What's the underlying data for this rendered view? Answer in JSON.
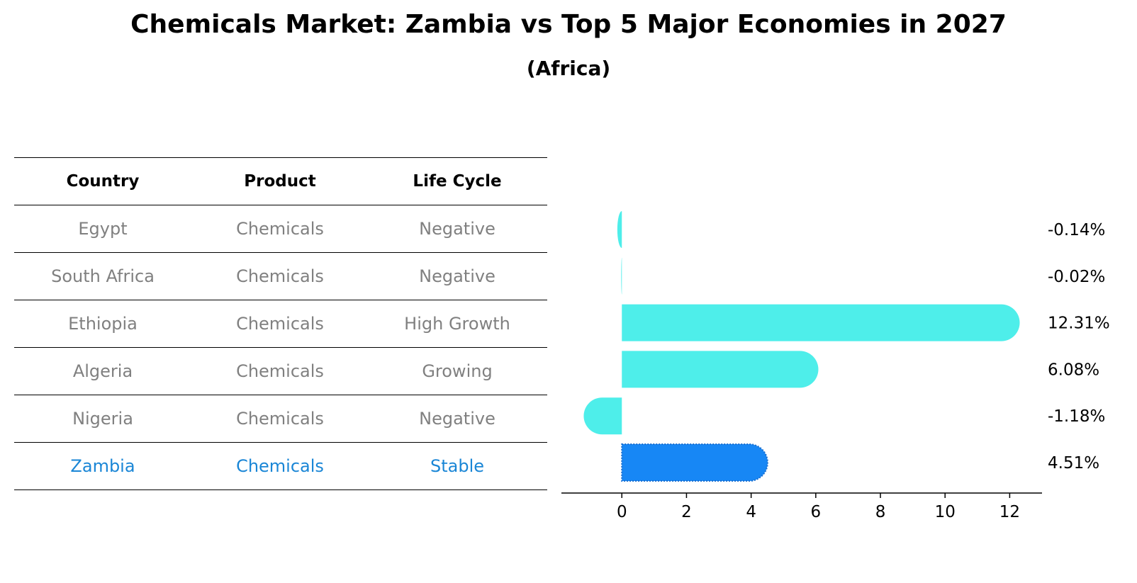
{
  "title": "Chemicals Market: Zambia vs Top 5 Major Economies in 2027",
  "subtitle": "(Africa)",
  "colors": {
    "row_text": "#808080",
    "highlight_text": "#1a86d6",
    "bar": "#4eeeea",
    "highlight_bar": "#1787f5"
  },
  "table": {
    "headers": [
      "Country",
      "Product",
      "Life Cycle"
    ],
    "rows": [
      {
        "country": "Egypt",
        "product": "Chemicals",
        "life_cycle": "Negative",
        "highlight": false
      },
      {
        "country": "South Africa",
        "product": "Chemicals",
        "life_cycle": "Negative",
        "highlight": false
      },
      {
        "country": "Ethiopia",
        "product": "Chemicals",
        "life_cycle": "High Growth",
        "highlight": false
      },
      {
        "country": "Algeria",
        "product": "Chemicals",
        "life_cycle": "Growing",
        "highlight": false
      },
      {
        "country": "Nigeria",
        "product": "Chemicals",
        "life_cycle": "Negative",
        "highlight": false
      },
      {
        "country": "Zambia",
        "product": "Chemicals",
        "life_cycle": "Stable",
        "highlight": true
      }
    ]
  },
  "chart_data": {
    "type": "bar",
    "orientation": "horizontal",
    "categories": [
      "Egypt",
      "South Africa",
      "Ethiopia",
      "Algeria",
      "Nigeria",
      "Zambia"
    ],
    "values": [
      -0.14,
      -0.02,
      12.31,
      6.08,
      -1.18,
      4.51
    ],
    "labels": [
      "-0.14%",
      "-0.02%",
      "12.31%",
      "6.08%",
      "-1.18%",
      "4.51%"
    ],
    "highlight_index": 5,
    "xlim": [
      -1.87,
      13
    ],
    "xticks": [
      0,
      2,
      4,
      6,
      8,
      10,
      12
    ],
    "title": "",
    "xlabel": "",
    "ylabel": ""
  }
}
